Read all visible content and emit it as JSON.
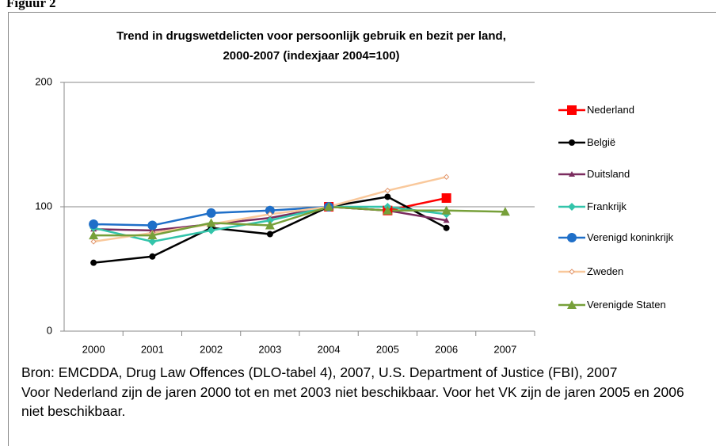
{
  "figure_label": "Figuur 2",
  "source": "Bron: EMCDDA, Drug Law Offences (DLO-tabel 4), 2007, U.S. Department of Justice (FBI), 2007",
  "note": "Voor Nederland zijn de jaren 2000 tot en met 2003 niet beschikbaar. Voor het VK zijn de jaren 2005 en 2006 niet beschikbaar.",
  "chart_data": {
    "type": "line",
    "title": [
      "Trend in drugswetdelicten voor persoonlijk gebruik en bezit per land,",
      "2000-2007 (indexjaar 2004=100)"
    ],
    "categories": [
      "2000",
      "2001",
      "2002",
      "2003",
      "2004",
      "2005",
      "2006",
      "2007"
    ],
    "ylim": [
      0,
      200
    ],
    "yticks": [
      0,
      100,
      200
    ],
    "grid": true,
    "legend": "right",
    "series": [
      {
        "name": "Nederland",
        "color": "#ff0000",
        "marker": "square",
        "values": [
          null,
          null,
          null,
          null,
          100,
          97,
          107,
          null
        ]
      },
      {
        "name": "België",
        "color": "#000000",
        "marker": "circle",
        "values": [
          55,
          60,
          83,
          78,
          100,
          108,
          83,
          null
        ]
      },
      {
        "name": "Duitsland",
        "color": "#7b2c5f",
        "marker": "triangle",
        "values": [
          82,
          81,
          86,
          91,
          100,
          97,
          89,
          null
        ]
      },
      {
        "name": "Frankrijk",
        "color": "#33c4aa",
        "marker": "diamond",
        "values": [
          83,
          72,
          81,
          89,
          100,
          100,
          94,
          null
        ]
      },
      {
        "name": "Verenigd koninkrijk",
        "color": "#1f6fc8",
        "marker": "bigcircle",
        "values": [
          86,
          85,
          95,
          97,
          100,
          null,
          null,
          null
        ]
      },
      {
        "name": "Zweden",
        "color": "#f9c89b",
        "marker": "opendiamond",
        "values": [
          72,
          79,
          86,
          94,
          100,
          113,
          124,
          null
        ]
      },
      {
        "name": "Verenigde Staten",
        "color": "#77a03a",
        "marker": "bigtriangle",
        "values": [
          77,
          77,
          87,
          85,
          100,
          97,
          97,
          96
        ]
      }
    ]
  }
}
